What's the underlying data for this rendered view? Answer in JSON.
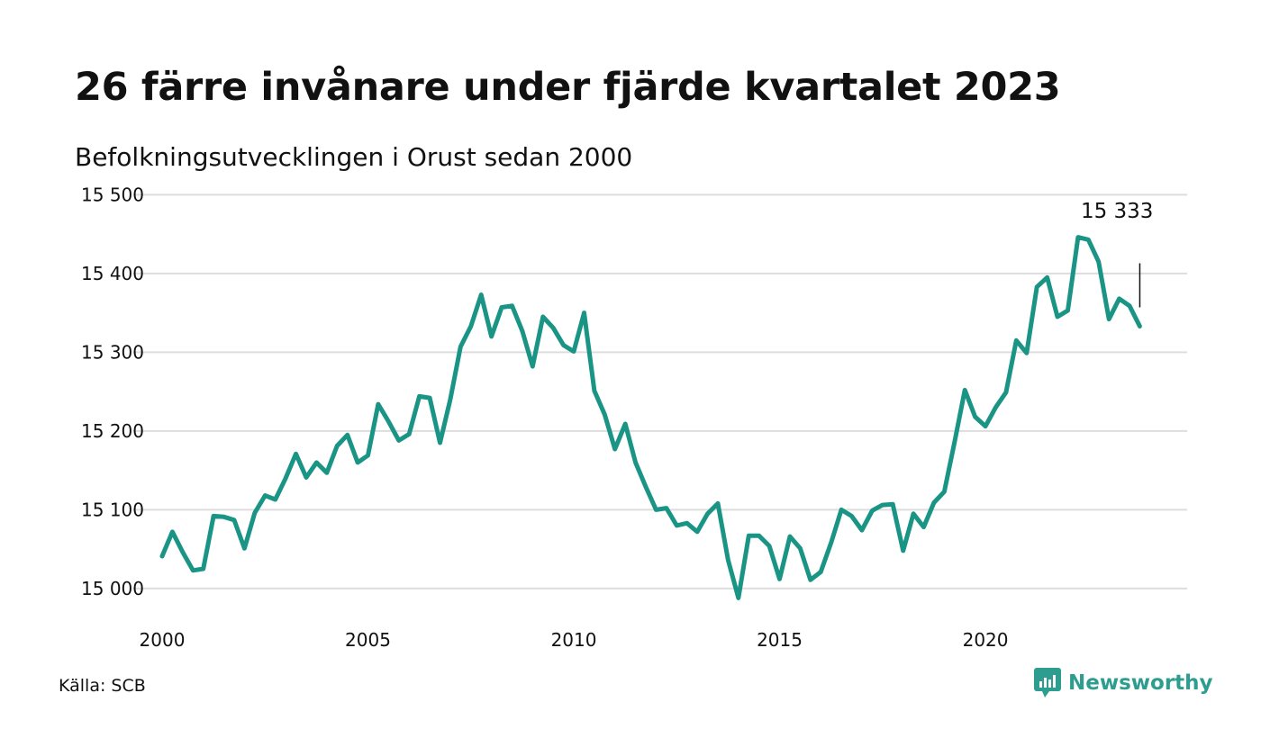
{
  "title": "26 färre invånare under fjärde kvartalet 2023",
  "subtitle": "Befolkningsutvecklingen i Orust sedan 2000",
  "source": "Källa: SCB",
  "brand": {
    "name": "Newsworthy",
    "icon": "newsworthy-logo-icon",
    "color": "#2c9d8f"
  },
  "colors": {
    "line": "#1a9485",
    "grid": "#dddddd",
    "annotation": "#111111"
  },
  "chart_data": {
    "type": "line",
    "title": "26 färre invånare under fjärde kvartalet 2023",
    "subtitle": "Befolkningsutvecklingen i Orust sedan 2000",
    "xlabel": "",
    "ylabel": "",
    "xlim": [
      2000,
      2024.9
    ],
    "ylim": [
      14985,
      15505
    ],
    "x_ticks": [
      2000,
      2005,
      2010,
      2015,
      2020
    ],
    "y_ticks": [
      15000,
      15100,
      15200,
      15300,
      15400,
      15500
    ],
    "y_tick_labels": [
      "15 000",
      "15 100",
      "15 200",
      "15 300",
      "15 400",
      "15 500"
    ],
    "grid": true,
    "legend": "none",
    "annotation": {
      "text": "15 333",
      "x": 2023.75,
      "y": 15333
    },
    "series": [
      {
        "x_start": 2000.0,
        "x_step": 0.25,
        "values": [
          15041,
          15072,
          15046,
          15023,
          15025,
          15092,
          15091,
          15087,
          15051,
          15096,
          15118,
          15113,
          15140,
          15171,
          15141,
          15160,
          15147,
          15181,
          15195,
          15160,
          15169,
          15234,
          15212,
          15188,
          15196,
          15244,
          15242,
          15185,
          15240,
          15307,
          15333,
          15373,
          15320,
          15357,
          15359,
          15327,
          15282,
          15345,
          15331,
          15309,
          15301,
          15350,
          15251,
          15221,
          15177,
          15209,
          15160,
          15129,
          15100,
          15102,
          15080,
          15083,
          15072,
          15095,
          15108,
          15036,
          14988,
          15067,
          15067,
          15054,
          15012,
          15066,
          15051,
          15011,
          15021,
          15058,
          15100,
          15092,
          15074,
          15099,
          15106,
          15107,
          15048,
          15095,
          15078,
          15109,
          15123,
          15186,
          15252,
          15218,
          15206,
          15230,
          15249,
          15315,
          15299,
          15383,
          15395,
          15345,
          15353,
          15446,
          15443,
          15415,
          15342,
          15368,
          15359,
          15333
        ]
      }
    ]
  }
}
